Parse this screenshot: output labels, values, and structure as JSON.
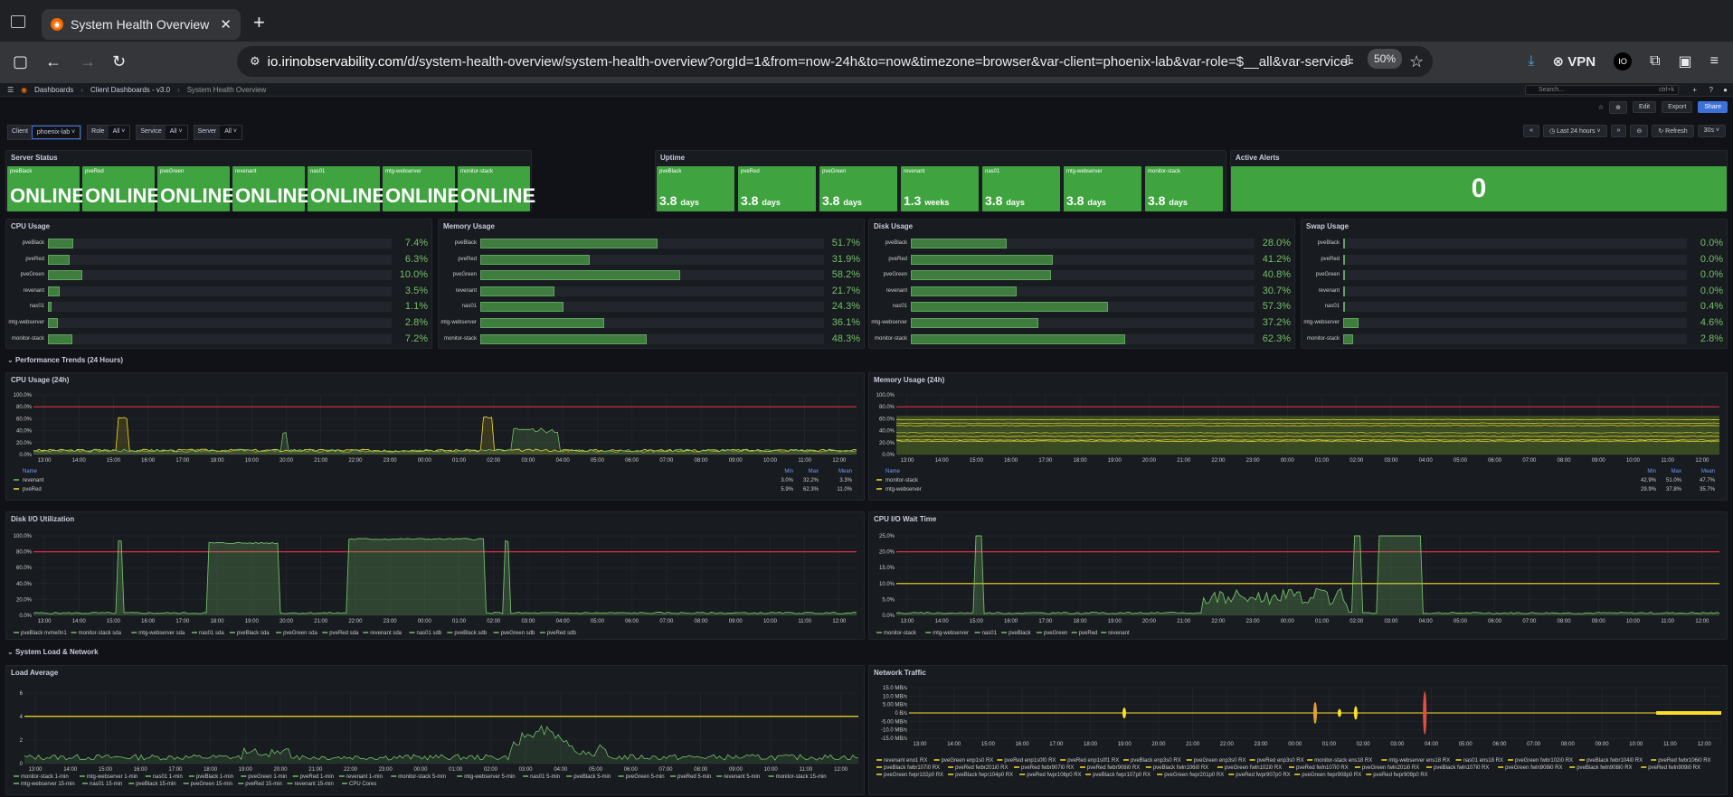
{
  "browser": {
    "tab_title": "System Health Overview - Client",
    "url_host": "io.irinobservability.com",
    "url_path": "/d/system-health-overview/system-health-overview?orgId=1&from=now-24h&to=now&timezone=browser&var-client=phoenix-lab&var-role=$__all&var-service=$__all&",
    "zoom": "50%",
    "vpn": "VPN",
    "profile": "IO"
  },
  "grafana": {
    "breadcrumb": [
      "Dashboards",
      "Client Dashboards - v3.0",
      "System Health Overview"
    ],
    "search_placeholder": "Search...",
    "search_shortcut": "ctrl+k",
    "edit_label": "Edit",
    "export_label": "Export",
    "share_label": "Share",
    "time_range": "Last 24 hours",
    "refresh_label": "Refresh",
    "refresh_interval": "30s",
    "vars": [
      {
        "label": "Client",
        "value": "phoenix-lab"
      },
      {
        "label": "Role",
        "value": "All"
      },
      {
        "label": "Service",
        "value": "All"
      },
      {
        "label": "Server",
        "value": "All"
      }
    ]
  },
  "server_status": {
    "title": "Server Status",
    "items": [
      {
        "name": "pveBlack",
        "value": "ONLINE"
      },
      {
        "name": "pveRed",
        "value": "ONLINE"
      },
      {
        "name": "pveGreen",
        "value": "ONLINE"
      },
      {
        "name": "revenant",
        "value": "ONLINE"
      },
      {
        "name": "nas01",
        "value": "ONLINE"
      },
      {
        "name": "mtg-webserver",
        "value": "ONLINE"
      },
      {
        "name": "monitor-stack",
        "value": "ONLINE"
      }
    ]
  },
  "uptime": {
    "title": "Uptime",
    "items": [
      {
        "name": "pveBlack",
        "value": "3.8",
        "unit": "days"
      },
      {
        "name": "pveRed",
        "value": "3.8",
        "unit": "days"
      },
      {
        "name": "pveGreen",
        "value": "3.8",
        "unit": "days"
      },
      {
        "name": "revenant",
        "value": "1.3",
        "unit": "weeks"
      },
      {
        "name": "nas01",
        "value": "3.8",
        "unit": "days"
      },
      {
        "name": "mtg-webserver",
        "value": "3.8",
        "unit": "days"
      },
      {
        "name": "monitor-stack",
        "value": "3.8",
        "unit": "days"
      }
    ]
  },
  "active_alerts": {
    "title": "Active Alerts",
    "value": "0"
  },
  "usage_panels": [
    {
      "title": "CPU Usage",
      "rows": [
        {
          "name": "pveBlack",
          "pct": 7.4,
          "label": "7.4%"
        },
        {
          "name": "pveRed",
          "pct": 6.3,
          "label": "6.3%"
        },
        {
          "name": "pveGreen",
          "pct": 10.0,
          "label": "10.0%"
        },
        {
          "name": "revenant",
          "pct": 3.5,
          "label": "3.5%"
        },
        {
          "name": "nas01",
          "pct": 1.1,
          "label": "1.1%"
        },
        {
          "name": "mtg-webserver",
          "pct": 2.8,
          "label": "2.8%"
        },
        {
          "name": "monitor-stack",
          "pct": 7.2,
          "label": "7.2%"
        }
      ]
    },
    {
      "title": "Memory Usage",
      "rows": [
        {
          "name": "pveBlack",
          "pct": 51.7,
          "label": "51.7%"
        },
        {
          "name": "pveRed",
          "pct": 31.9,
          "label": "31.9%"
        },
        {
          "name": "pveGreen",
          "pct": 58.2,
          "label": "58.2%"
        },
        {
          "name": "revenant",
          "pct": 21.7,
          "label": "21.7%"
        },
        {
          "name": "nas01",
          "pct": 24.3,
          "label": "24.3%"
        },
        {
          "name": "mtg-webserver",
          "pct": 36.1,
          "label": "36.1%"
        },
        {
          "name": "monitor-stack",
          "pct": 48.3,
          "label": "48.3%"
        }
      ]
    },
    {
      "title": "Disk Usage",
      "rows": [
        {
          "name": "pveBlack",
          "pct": 28.0,
          "label": "28.0%"
        },
        {
          "name": "pveRed",
          "pct": 41.2,
          "label": "41.2%"
        },
        {
          "name": "pveGreen",
          "pct": 40.8,
          "label": "40.8%"
        },
        {
          "name": "revenant",
          "pct": 30.7,
          "label": "30.7%"
        },
        {
          "name": "nas01",
          "pct": 57.3,
          "label": "57.3%"
        },
        {
          "name": "mtg-webserver",
          "pct": 37.2,
          "label": "37.2%"
        },
        {
          "name": "monitor-stack",
          "pct": 62.3,
          "label": "62.3%"
        }
      ]
    },
    {
      "title": "Swap Usage",
      "rows": [
        {
          "name": "pveBlack",
          "pct": 0.0,
          "label": "0.0%"
        },
        {
          "name": "pveRed",
          "pct": 0.0,
          "label": "0.0%"
        },
        {
          "name": "pveGreen",
          "pct": 0.0,
          "label": "0.0%"
        },
        {
          "name": "revenant",
          "pct": 0.0,
          "label": "0.0%"
        },
        {
          "name": "nas01",
          "pct": 0.4,
          "label": "0.4%"
        },
        {
          "name": "mtg-webserver",
          "pct": 4.6,
          "label": "4.6%"
        },
        {
          "name": "monitor-stack",
          "pct": 2.8,
          "label": "2.8%"
        }
      ]
    }
  ],
  "sections": {
    "performance": "Performance Trends (24 Hours)",
    "load_network": "System Load & Network"
  },
  "time_ticks": [
    "13:00",
    "14:00",
    "15:00",
    "16:00",
    "17:00",
    "18:00",
    "19:00",
    "20:00",
    "21:00",
    "22:00",
    "23:00",
    "00:00",
    "01:00",
    "02:00",
    "03:00",
    "04:00",
    "05:00",
    "06:00",
    "07:00",
    "08:00",
    "09:00",
    "10:00",
    "11:00",
    "12:00"
  ],
  "pct_ticks": [
    "100.0%",
    "80.0%",
    "60.0%",
    "40.0%",
    "20.0%",
    "0.0%"
  ],
  "graphs": {
    "cpu24": {
      "title": "CPU Usage (24h)",
      "legend_header": [
        "Name",
        "Min",
        "Max",
        "Mean"
      ],
      "legend_rows": [
        [
          "revenant",
          "3.0%",
          "32.2%",
          "3.3%"
        ],
        [
          "pveRed",
          "5.9%",
          "62.3%",
          "11.0%"
        ]
      ]
    },
    "mem24": {
      "title": "Memory Usage (24h)",
      "legend_header": [
        "Name",
        "Min",
        "Max",
        "Mean"
      ],
      "legend_rows": [
        [
          "monitor-stack",
          "42.9%",
          "51.0%",
          "47.7%"
        ],
        [
          "mtg-webserver",
          "29.9%",
          "37.8%",
          "35.7%"
        ]
      ]
    },
    "diskio": {
      "title": "Disk I/O Utilization",
      "legend": [
        "pveBlack nvme0n1",
        "monitor-stack sda",
        "mtg-webserver sda",
        "nas01 sda",
        "pveBlack sda",
        "pveGreen sda",
        "pveRed sda",
        "revenant sda",
        "nas01 sdb",
        "pveBlack sdb",
        "pveGreen sdb",
        "pveRed sdb"
      ]
    },
    "iowait": {
      "title": "CPU I/O Wait Time",
      "yticks": [
        "25.0%",
        "20.0%",
        "15.0%",
        "10.0%",
        "5.0%",
        "0.0%"
      ],
      "legend": [
        "monitor-stack",
        "mtg-webserver",
        "nas01",
        "pveBlack",
        "pveGreen",
        "pveRed",
        "revenant"
      ]
    },
    "load": {
      "title": "Load Average",
      "yticks": [
        "6",
        "4",
        "2",
        "0"
      ],
      "legend": [
        "monitor-stack 1-min",
        "mtg-webserver 1-min",
        "nas01 1-min",
        "pveBlack 1-min",
        "pveGreen 1-min",
        "pveRed 1-min",
        "revenant 1-min",
        "monitor-stack 5-min",
        "mtg-webserver 5-min",
        "nas01 5-min",
        "pveBlack 5-min",
        "pveGreen 5-min",
        "pveRed 5-min",
        "revenant 5-min",
        "monitor-stack 15-min",
        "mtg-webserver 15-min",
        "nas01 15-min",
        "pveBlack 15-min",
        "pveGreen 15-min",
        "pveRed 15-min",
        "revenant 15-min",
        "CPU Cores"
      ]
    },
    "net": {
      "title": "Network Traffic",
      "yticks": [
        "15.0 MB/s",
        "10.0 MB/s",
        "5.00 MB/s",
        "0 B/s",
        "-5.00 MB/s",
        "-10.0 MB/s",
        "-15.0 MB/s"
      ],
      "legend": [
        "revenant eno1 RX",
        "pveGreen enp1s0 RX",
        "pveRed enp1s0f0 RX",
        "pveRed enp1s0f1 RX",
        "pveBlack enp3s0 RX",
        "pveGreen enp3s0 RX",
        "pveRed enp3s0 RX",
        "monitor-stack ens18 RX",
        "mtg-webserver ens18 RX",
        "nas01 ens18 RX",
        "pveGreen fwbr102i0 RX",
        "pveBlack fwbr104i0 RX",
        "pveRed fwbr106i0 RX",
        "pveBlack fwbr107i0 RX",
        "pveRed fwbr201i0 RX",
        "pveRed fwbr907i0 RX",
        "pveRed fwbr908i0 RX",
        "pveBlack fwln106i0 RX",
        "pveGreen fwln102i0 RX",
        "pveRed fwln107i0 RX",
        "pveGreen fwln201i0 RX",
        "pveBlack fwln107i0 RX",
        "pveGreen fwln908i0 RX",
        "pveBlack fwln908i0 RX",
        "pveRed fwln909i0 RX",
        "pveGreen fwpr102p0 RX",
        "pveBlack fwpr104p0 RX",
        "pveRed fwpr106p0 RX",
        "pveBlack fwpr107p0 RX",
        "pveGreen fwpr201p0 RX",
        "pveRed fwpr907p0 RX",
        "pveGreen fwpr908p0 RX",
        "pveRed fwpr909p0 RX"
      ]
    }
  },
  "colors": {
    "green": "#73bf69",
    "stat_green": "#3fa33f",
    "threshold_red": "#e02f44",
    "yellow": "#fade2a"
  }
}
